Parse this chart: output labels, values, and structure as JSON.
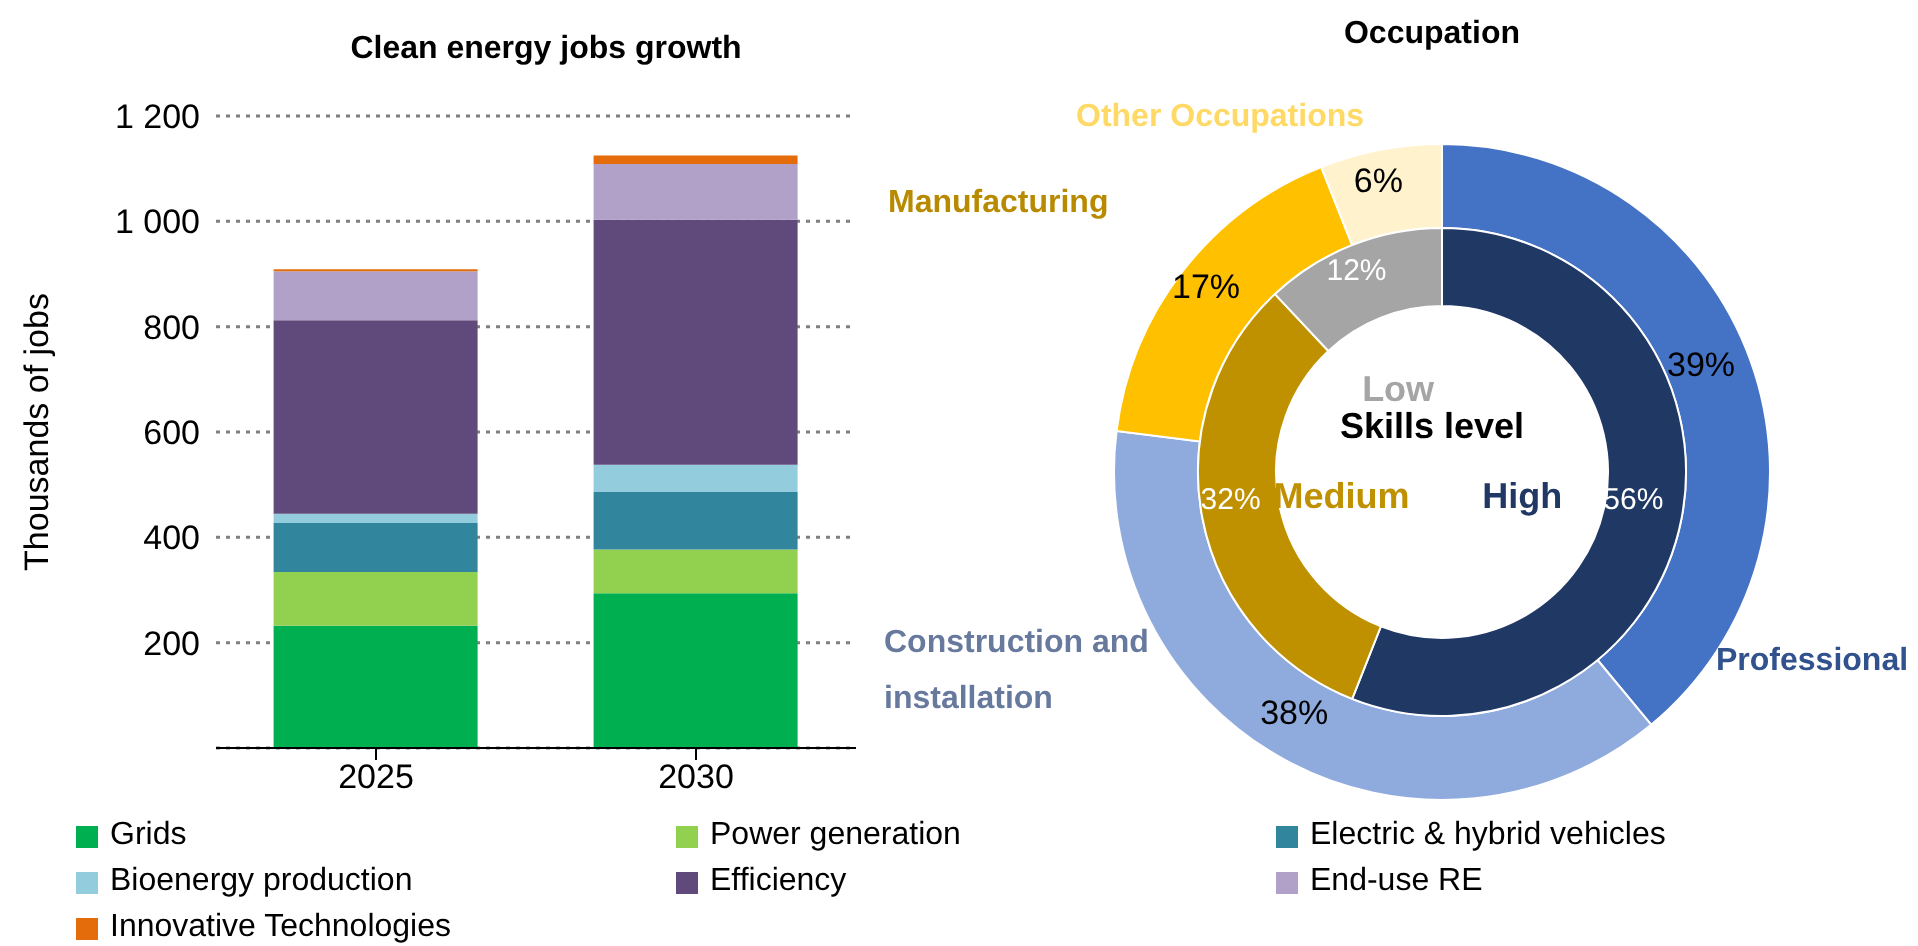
{
  "chart_data": [
    {
      "type": "bar",
      "title": "Clean energy jobs growth",
      "ylabel": "Thousands of jobs",
      "categories": [
        "2025",
        "2030"
      ],
      "stacked": true,
      "ylim": [
        0,
        1200
      ],
      "yticks": [
        200,
        400,
        600,
        800,
        {
          "value": 1000,
          "label": "1 000"
        },
        {
          "value": 1200,
          "label": "1 200"
        }
      ],
      "grid": "y",
      "legend": "bottom",
      "series": [
        {
          "name": "Grids",
          "color": "#00b050",
          "values": [
            232,
            294
          ]
        },
        {
          "name": "Power generation",
          "color": "#92d050",
          "values": [
            102,
            83
          ]
        },
        {
          "name": "Electric & hybrid vehicles",
          "color": "#31859c",
          "values": [
            93,
            109
          ]
        },
        {
          "name": "Bioenergy production",
          "color": "#93cddd",
          "values": [
            18,
            52
          ]
        },
        {
          "name": "Efficiency",
          "color": "#604a7b",
          "values": [
            367,
            465
          ]
        },
        {
          "name": "End-use RE",
          "color": "#b1a0c7",
          "values": [
            93,
            106
          ]
        },
        {
          "name": "Innovative Technologies",
          "color": "#e46c0a",
          "values": [
            4,
            16
          ]
        }
      ]
    },
    {
      "type": "donut",
      "title": "Occupation",
      "categories": [
        "Professional",
        "Construction and installation",
        "Manufacturing",
        "Other Occupations"
      ],
      "values": [
        39,
        38,
        17,
        6
      ],
      "colors": [
        "#4472c4",
        "#8faadc",
        "#ffc000",
        "#fff2cc"
      ],
      "value_labels": [
        "39%",
        "38%",
        "17%",
        "6%"
      ]
    },
    {
      "type": "donut",
      "title": "Skills level",
      "categories": [
        "High",
        "Medium",
        "Low"
      ],
      "values": [
        56,
        32,
        12
      ],
      "colors": [
        "#203864",
        "#bf9000",
        "#a5a5a5"
      ],
      "value_labels": [
        "56%",
        "32%",
        "12%"
      ]
    }
  ]
}
